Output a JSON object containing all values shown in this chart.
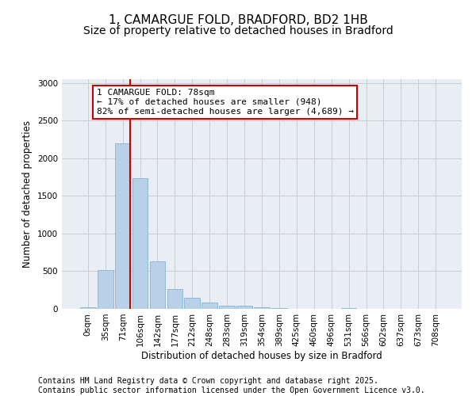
{
  "title_line1": "1, CAMARGUE FOLD, BRADFORD, BD2 1HB",
  "title_line2": "Size of property relative to detached houses in Bradford",
  "xlabel": "Distribution of detached houses by size in Bradford",
  "ylabel": "Number of detached properties",
  "categories": [
    "0sqm",
    "35sqm",
    "71sqm",
    "106sqm",
    "142sqm",
    "177sqm",
    "212sqm",
    "248sqm",
    "283sqm",
    "319sqm",
    "354sqm",
    "389sqm",
    "425sqm",
    "460sqm",
    "496sqm",
    "531sqm",
    "566sqm",
    "602sqm",
    "637sqm",
    "673sqm",
    "708sqm"
  ],
  "values": [
    20,
    520,
    2200,
    1740,
    630,
    265,
    150,
    80,
    45,
    40,
    25,
    10,
    5,
    5,
    0,
    15,
    0,
    0,
    5,
    0,
    0
  ],
  "bar_color": "#b8d0e8",
  "bar_edge_color": "#7aadcc",
  "vline_x_index": 2,
  "vline_color": "#cc0000",
  "annotation_text": "1 CAMARGUE FOLD: 78sqm\n← 17% of detached houses are smaller (948)\n82% of semi-detached houses are larger (4,689) →",
  "annotation_box_color": "#cc0000",
  "annotation_facecolor": "white",
  "ylim": [
    0,
    3050
  ],
  "yticks": [
    0,
    500,
    1000,
    1500,
    2000,
    2500,
    3000
  ],
  "grid_color": "#cccccc",
  "background_color": "#e8eef4",
  "footer_text": "Contains HM Land Registry data © Crown copyright and database right 2025.\nContains public sector information licensed under the Open Government Licence v3.0.",
  "title_fontsize": 11,
  "subtitle_fontsize": 10,
  "tick_fontsize": 7.5,
  "ylabel_fontsize": 8.5,
  "xlabel_fontsize": 8.5,
  "footer_fontsize": 7,
  "annotation_fontsize": 8
}
